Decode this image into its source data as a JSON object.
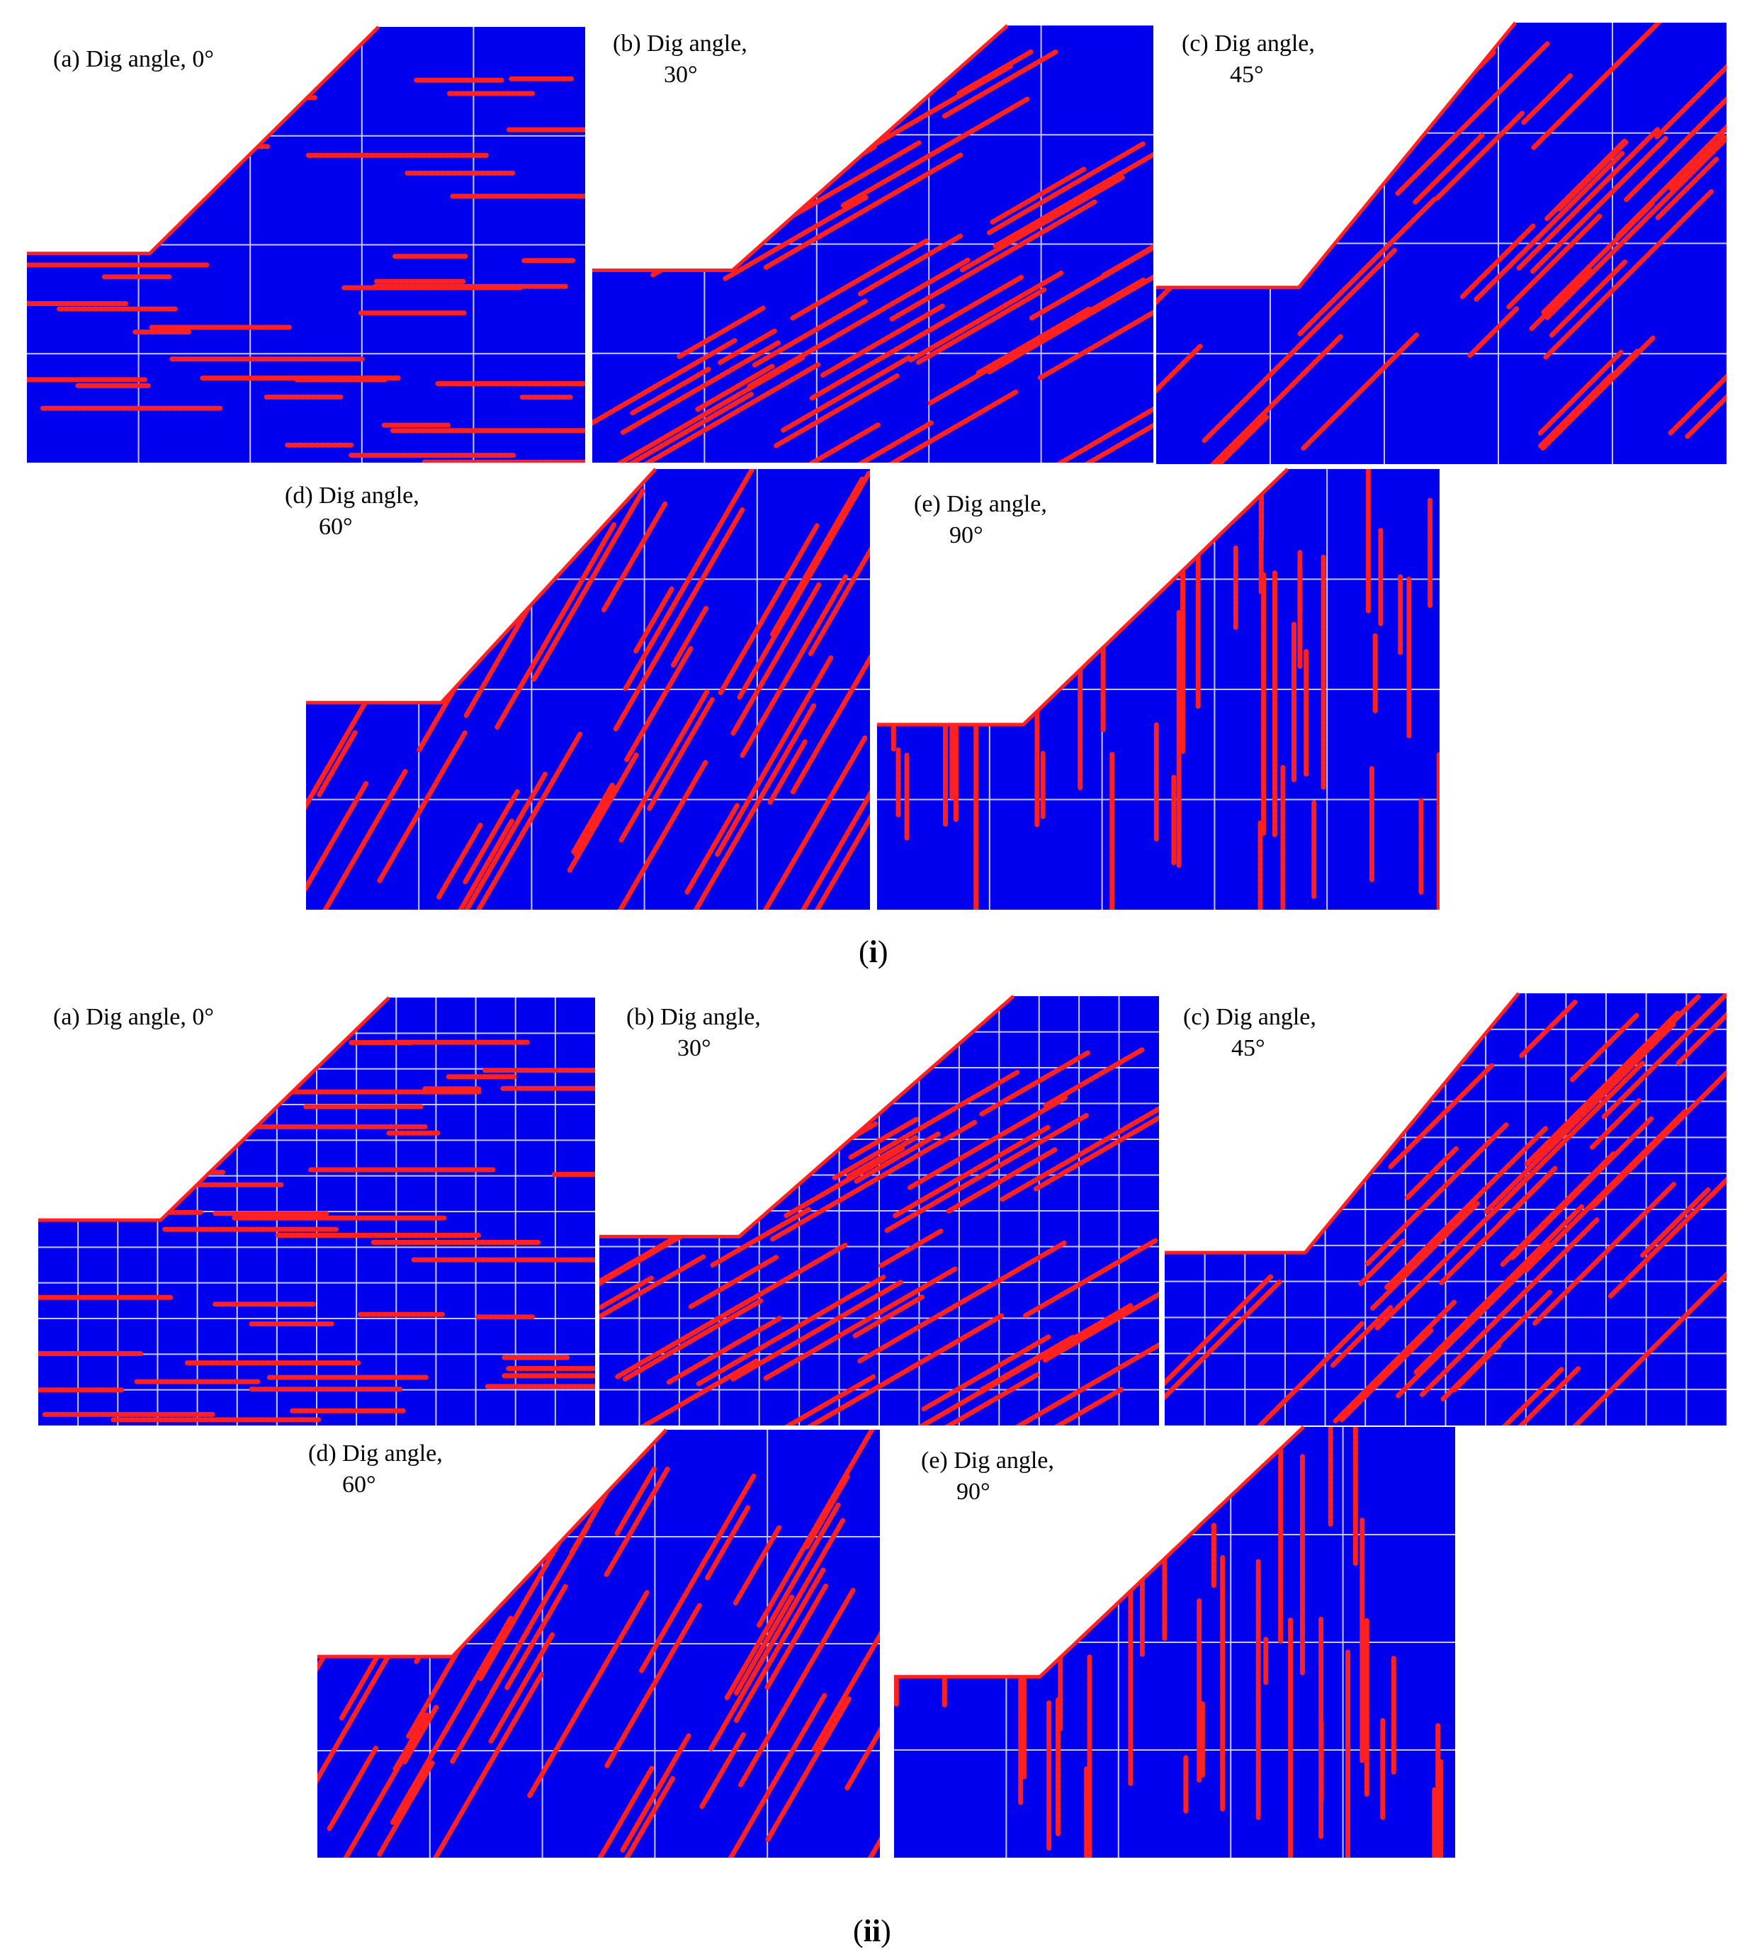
{
  "figure": {
    "colors": {
      "background": "#0000ee",
      "joint": "#ff2020",
      "grid": "#c8c8ff",
      "page": "#ffffff"
    },
    "groups": [
      {
        "id": "i",
        "caption_open": "(",
        "caption_main": "i",
        "caption_close": ")",
        "grid": "coarse",
        "panels": [
          {
            "id": "a",
            "label_line1": "(a) Dig angle, 0°",
            "label_line2": "",
            "dig_angle": 0
          },
          {
            "id": "b",
            "label_line1": "(b) Dig angle,",
            "label_line2": "30°",
            "dig_angle": 30
          },
          {
            "id": "c",
            "label_line1": "(c) Dig angle,",
            "label_line2": "45°",
            "dig_angle": 45
          },
          {
            "id": "d",
            "label_line1": "(d) Dig angle,",
            "label_line2": "60°",
            "dig_angle": 60
          },
          {
            "id": "e",
            "label_line1": "(e) Dig angle,",
            "label_line2": "90°",
            "dig_angle": 90
          }
        ]
      },
      {
        "id": "ii",
        "caption_open": "(",
        "caption_main": "ii",
        "caption_close": ")",
        "grid": "fine",
        "panels": [
          {
            "id": "a",
            "label_line1": "(a) Dig angle, 0°",
            "label_line2": "",
            "dig_angle": 0
          },
          {
            "id": "b",
            "label_line1": "(b) Dig angle,",
            "label_line2": "30°",
            "dig_angle": 30
          },
          {
            "id": "c",
            "label_line1": "(c) Dig angle,",
            "label_line2": "45°",
            "dig_angle": 45
          },
          {
            "id": "d",
            "label_line1": "(d) Dig angle,",
            "label_line2": "60°",
            "dig_angle": 60
          },
          {
            "id": "e",
            "label_line1": "(e) Dig angle,",
            "label_line2": "90°",
            "dig_angle": 90
          }
        ]
      }
    ]
  }
}
